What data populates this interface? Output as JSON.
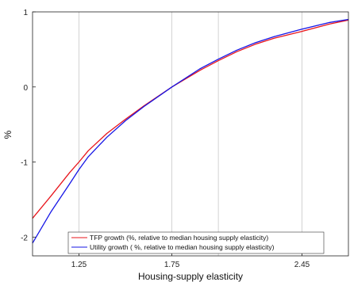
{
  "chart_data": {
    "type": "line",
    "xlabel": "Housing-supply elasticity",
    "ylabel": "%",
    "xlim": [
      1.0,
      2.7
    ],
    "ylim": [
      -2.25,
      1.0
    ],
    "xticks": [
      1.25,
      1.75,
      2.45
    ],
    "xtick_labels": [
      "1.25",
      "1.75",
      "2.45"
    ],
    "yticks": [
      -2,
      -1,
      0,
      1
    ],
    "ytick_labels": [
      "-2",
      "-1",
      "0",
      "1"
    ],
    "vgrid": [
      1.25,
      1.75,
      2.0,
      2.45
    ],
    "legend_position": "bottom-right",
    "series": [
      {
        "name": "TFP growth (%, relative to median  housing supply elasticity)",
        "color": "#e8141b",
        "x": [
          1.0,
          1.1,
          1.2,
          1.25,
          1.3,
          1.4,
          1.5,
          1.6,
          1.75,
          1.9,
          2.0,
          2.1,
          2.2,
          2.3,
          2.45,
          2.6,
          2.7
        ],
        "y": [
          -1.75,
          -1.45,
          -1.14,
          -1.0,
          -0.85,
          -0.62,
          -0.43,
          -0.25,
          0.0,
          0.22,
          0.35,
          0.47,
          0.57,
          0.65,
          0.74,
          0.84,
          0.89
        ]
      },
      {
        "name": "Utility growth ( %, relative to median housing supply elasticity)",
        "color": "#1616e6",
        "x": [
          1.0,
          1.1,
          1.2,
          1.25,
          1.3,
          1.4,
          1.5,
          1.6,
          1.75,
          1.9,
          2.0,
          2.1,
          2.2,
          2.3,
          2.45,
          2.6,
          2.7
        ],
        "y": [
          -2.08,
          -1.66,
          -1.29,
          -1.1,
          -0.93,
          -0.67,
          -0.45,
          -0.26,
          0.0,
          0.24,
          0.37,
          0.49,
          0.59,
          0.67,
          0.77,
          0.86,
          0.9
        ]
      }
    ]
  }
}
